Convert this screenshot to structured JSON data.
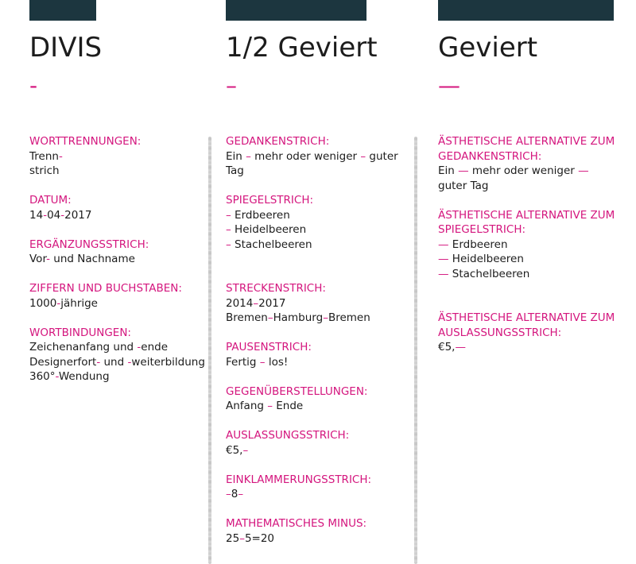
{
  "colors": {
    "accent": "#d4167e",
    "bar": "#1c363f",
    "text": "#1c1c1c"
  },
  "columns": [
    {
      "heading": "DIVIS",
      "dash": "-",
      "sections": [
        {
          "label": "WORTTRENNUNGEN:",
          "lines": [
            [
              [
                "Trenn",
                ""
              ],
              [
                "-",
                "pk"
              ]
            ],
            [
              [
                "strich",
                ""
              ]
            ]
          ]
        },
        {
          "label": "DATUM:",
          "lines": [
            [
              [
                "14",
                ""
              ],
              [
                "-",
                "pk"
              ],
              [
                "04",
                ""
              ],
              [
                "-",
                "pk"
              ],
              [
                "2017",
                ""
              ]
            ]
          ]
        },
        {
          "label": "ERGÄNZUNGSSTRICH:",
          "lines": [
            [
              [
                "Vor",
                ""
              ],
              [
                "-",
                "pk"
              ],
              [
                " und Nachname",
                ""
              ]
            ]
          ]
        },
        {
          "label": "ZIFFERN UND BUCHSTABEN:",
          "lines": [
            [
              [
                "1000",
                ""
              ],
              [
                "-",
                "pk"
              ],
              [
                "jährige",
                ""
              ]
            ]
          ]
        },
        {
          "label": "WORTBINDUNGEN:",
          "lines": [
            [
              [
                "Zeichenanfang und ",
                ""
              ],
              [
                "-",
                "pk"
              ],
              [
                "ende",
                ""
              ]
            ],
            [
              [
                "Designerfort",
                ""
              ],
              [
                "-",
                "pk"
              ],
              [
                " und ",
                ""
              ],
              [
                "-",
                "pk"
              ],
              [
                "weiterbildung",
                ""
              ]
            ],
            [
              [
                "360°",
                ""
              ],
              [
                "-",
                "pk"
              ],
              [
                "Wendung",
                ""
              ]
            ]
          ]
        }
      ]
    },
    {
      "heading": "1/2 Geviert",
      "dash": "–",
      "sections": [
        {
          "label": "GEDANKENSTRICH:",
          "lines": [
            [
              [
                "Ein ",
                ""
              ],
              [
                "–",
                "pk"
              ],
              [
                " mehr oder weniger ",
                ""
              ],
              [
                "–",
                "pk"
              ],
              [
                " guter",
                ""
              ]
            ],
            [
              [
                "Tag",
                ""
              ]
            ]
          ]
        },
        {
          "label": "SPIEGELSTRICH:",
          "lines": [
            [
              [
                "–",
                "pk"
              ],
              [
                " Erdbeeren",
                ""
              ]
            ],
            [
              [
                "–",
                "pk"
              ],
              [
                " Heidelbeeren",
                ""
              ]
            ],
            [
              [
                "–",
                "pk"
              ],
              [
                " Stachelbeeren",
                ""
              ]
            ]
          ],
          "gap_after": true
        },
        {
          "label": "STRECKENSTRICH:",
          "lines": [
            [
              [
                "2014",
                ""
              ],
              [
                "–",
                "pk"
              ],
              [
                "2017",
                ""
              ]
            ],
            [
              [
                "Bremen",
                ""
              ],
              [
                "–",
                "pk"
              ],
              [
                "Hamburg",
                ""
              ],
              [
                "–",
                "pk"
              ],
              [
                "Bremen",
                ""
              ]
            ]
          ]
        },
        {
          "label": "PAUSENSTRICH:",
          "lines": [
            [
              [
                "Fertig ",
                ""
              ],
              [
                "–",
                "pk"
              ],
              [
                " los!",
                ""
              ]
            ]
          ]
        },
        {
          "label": "GEGENÜBERSTELLUNGEN:",
          "lines": [
            [
              [
                "Anfang ",
                ""
              ],
              [
                "–",
                "pk"
              ],
              [
                " Ende",
                ""
              ]
            ]
          ]
        },
        {
          "label": "AUSLASSUNGSSTRICH:",
          "lines": [
            [
              [
                "€5,",
                ""
              ],
              [
                "–",
                "pk"
              ]
            ]
          ]
        },
        {
          "label": "EINKLAMMERUNGSSTRICH:",
          "lines": [
            [
              [
                "–",
                "pk"
              ],
              [
                "8",
                ""
              ],
              [
                "–",
                "pk"
              ]
            ]
          ]
        },
        {
          "label": "MATHEMATISCHES MINUS:",
          "lines": [
            [
              [
                "25",
                ""
              ],
              [
                "–",
                "pk"
              ],
              [
                "5=20",
                ""
              ]
            ]
          ]
        }
      ]
    },
    {
      "heading": "Geviert",
      "dash": "—",
      "sections": [
        {
          "label": "ÄSTHETISCHE ALTERNATIVE ZUM GEDANKENSTRICH:",
          "lines": [
            [
              [
                "Ein ",
                ""
              ],
              [
                "—",
                "pk"
              ],
              [
                " mehr oder weniger ",
                ""
              ],
              [
                "—",
                "pk"
              ]
            ],
            [
              [
                "guter Tag",
                ""
              ]
            ]
          ]
        },
        {
          "label": "ÄSTHETISCHE ALTERNATIVE ZUM SPIEGELSTRICH:",
          "lines": [
            [
              [
                "—",
                "pk"
              ],
              [
                " Erdbeeren",
                ""
              ]
            ],
            [
              [
                "—",
                "pk"
              ],
              [
                " Heidelbeeren",
                ""
              ]
            ],
            [
              [
                "—",
                "pk"
              ],
              [
                " Stachelbeeren",
                ""
              ]
            ]
          ],
          "gap_after": true
        },
        {
          "label": "ÄSTHETISCHE ALTERNATIVE ZUM AUSLASSUNGSSTRICH:",
          "lines": [
            [
              [
                "€5,",
                ""
              ],
              [
                "—",
                "pk"
              ]
            ]
          ]
        }
      ]
    }
  ]
}
